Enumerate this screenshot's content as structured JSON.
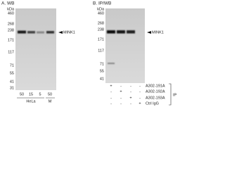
{
  "panels": [
    {
      "label": "A. WB",
      "unit": "kDa",
      "markers": [
        "460",
        "268",
        "238",
        "171",
        "117",
        "71",
        "55",
        "41",
        "31"
      ],
      "target": "MINK1",
      "lanes": [
        "50",
        "15",
        "5",
        "50"
      ],
      "samples": [
        "HeLa",
        "M"
      ]
    },
    {
      "label": "B. IP/WB",
      "unit": "kDa",
      "markers": [
        "460",
        "268",
        "238",
        "171",
        "117",
        "71",
        "55",
        "41"
      ],
      "target": "MINK1",
      "ip_rows": [
        {
          "name": "A302-191A",
          "signs": [
            "+",
            "-",
            "-",
            "-"
          ]
        },
        {
          "name": "A302-192A",
          "signs": [
            "-",
            "+",
            "-",
            "-"
          ]
        },
        {
          "name": "A302-193A",
          "signs": [
            "-",
            "-",
            "+",
            "-"
          ]
        },
        {
          "name": "Ctrl IgG",
          "signs": [
            "-",
            "-",
            "-",
            "+"
          ]
        }
      ],
      "ip_label": "IP"
    }
  ]
}
